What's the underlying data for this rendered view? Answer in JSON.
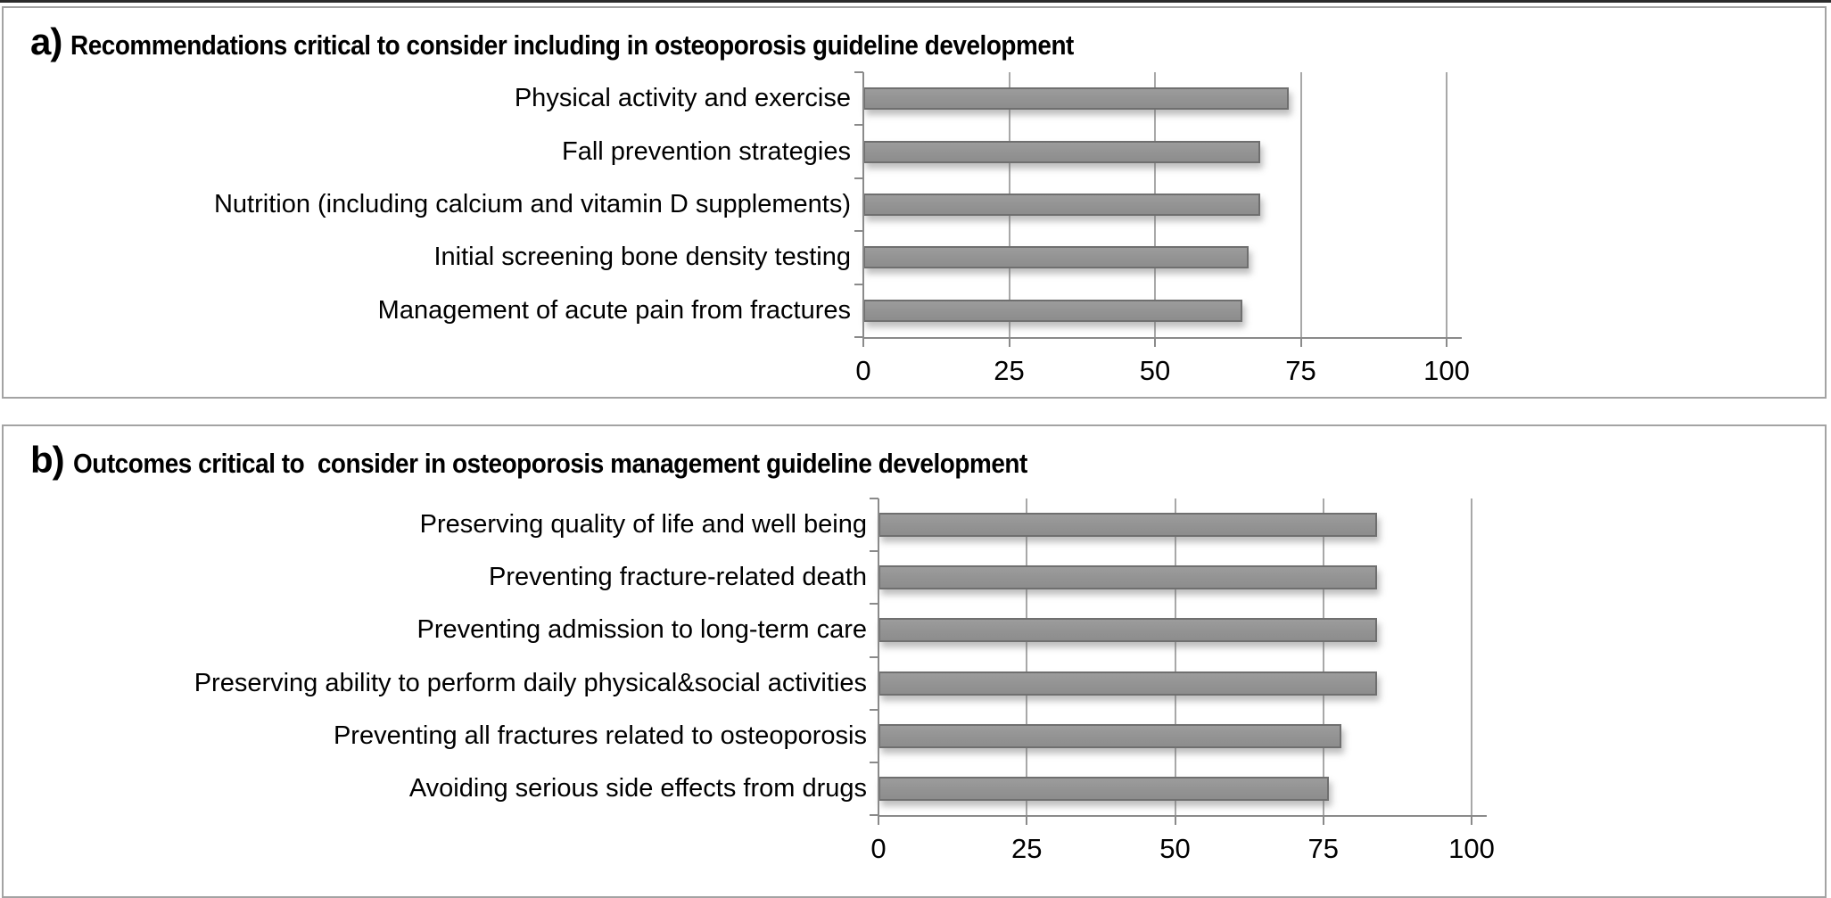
{
  "figure": {
    "panels": [
      {
        "label": "a)",
        "title": "Recommendations critical to consider including in osteoporosis guideline development"
      },
      {
        "label": "b)",
        "title": "Outcomes critical to  consider in osteoporosis management guideline development"
      }
    ]
  },
  "chart_data": [
    {
      "type": "bar",
      "orientation": "horizontal",
      "title": "a) Recommendations critical to consider including in osteoporosis guideline development",
      "categories": [
        "Physical activity and exercise",
        "Fall prevention strategies",
        "Nutrition (including calcium and vitamin D supplements)",
        "Initial screening bone density testing",
        "Management of acute pain from fractures"
      ],
      "values": [
        73,
        68,
        68,
        66,
        65
      ],
      "xlabel": "",
      "ylabel": "",
      "xlim": [
        0,
        100
      ],
      "xticks": [
        0,
        25,
        50,
        75,
        100
      ],
      "grid": true,
      "legend_position": "none",
      "bar_color": "#929292"
    },
    {
      "type": "bar",
      "orientation": "horizontal",
      "title": "b) Outcomes critical to consider in osteoporosis management guideline development",
      "categories": [
        "Preserving quality of life and well being",
        "Preventing fracture-related death",
        "Preventing admission to long-term care",
        "Preserving ability to perform daily physical&social activities",
        "Preventing all fractures related to osteoporosis",
        "Avoiding serious side effects from drugs"
      ],
      "values": [
        84,
        84,
        84,
        84,
        78,
        76
      ],
      "xlabel": "",
      "ylabel": "",
      "xlim": [
        0,
        100
      ],
      "xticks": [
        0,
        25,
        50,
        75,
        100
      ],
      "grid": true,
      "legend_position": "none",
      "bar_color": "#929292"
    }
  ],
  "colors": {
    "bar_fill": "#929292",
    "bar_border": "#6f6f6f",
    "gridline": "#a8a8a8",
    "axis": "#8a8a8a",
    "panel_border": "#a3a3a3",
    "text": "#000000",
    "background": "#ffffff"
  }
}
